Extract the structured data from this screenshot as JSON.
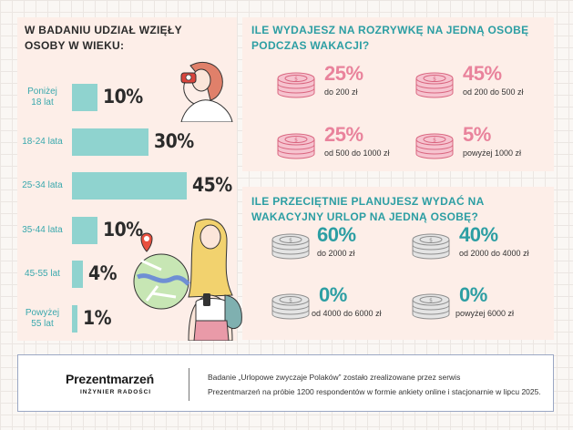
{
  "age_panel": {
    "title": "W BADANIU UDZIAŁ WZIĘŁY OSOBY W WIEKU:"
  },
  "spend_panel": {
    "title": "ILE WYDAJESZ NA ROZRYWKĘ NA JEDNĄ OSOBĘ PODCZAS WAKACJI?",
    "items": [
      {
        "pct": "25%",
        "range": "do 200 zł"
      },
      {
        "pct": "45%",
        "range": "od 200 do 500 zł"
      },
      {
        "pct": "25%",
        "range": "od 500 do 1000 zł"
      },
      {
        "pct": "5%",
        "range": "powyżej 1000 zł"
      }
    ]
  },
  "plan_panel": {
    "title": "ILE PRZECIĘTNIE PLANUJESZ WYDAĆ NA WAKACYJNY URLOP NA JEDNĄ OSOBĘ?",
    "items": [
      {
        "pct": "60%",
        "range": "do 2000 zł"
      },
      {
        "pct": "40%",
        "range": "od 2000 do 4000 zł"
      },
      {
        "pct": "0%",
        "range": "od 4000 do 6000 zł"
      },
      {
        "pct": "0%",
        "range": "powyżej 6000 zł"
      }
    ]
  },
  "chart_data": [
    {
      "type": "bar",
      "title": "W BADANIU UDZIAŁ WZIĘŁY OSOBY W WIEKU:",
      "categories": [
        "Poniżej 18 lat",
        "18-24 lata",
        "25-34 lata",
        "35-44 lata",
        "45-55 lat",
        "Powyżej 55 lat"
      ],
      "values": [
        10,
        30,
        45,
        10,
        4,
        1
      ],
      "value_labels": [
        "10%",
        "30%",
        "45%",
        "10%",
        "4%",
        "1%"
      ],
      "xlim": [
        0,
        45
      ]
    },
    {
      "type": "table",
      "title": "ILE WYDAJESZ NA ROZRYWKĘ NA JEDNĄ OSOBĘ PODCZAS WAKACJI?",
      "categories": [
        "do 200 zł",
        "od 200 do 500 zł",
        "od 500 do 1000 zł",
        "powyżej 1000 zł"
      ],
      "values": [
        25,
        45,
        25,
        5
      ]
    },
    {
      "type": "table",
      "title": "ILE PRZECIĘTNIE PLANUJESZ WYDAĆ NA WAKACYJNY URLOP NA JEDNĄ OSOBĘ?",
      "categories": [
        "do 2000 zł",
        "od 2000 do 4000 zł",
        "od 4000 do 6000 zł",
        "powyżej 6000 zł"
      ],
      "values": [
        60,
        40,
        0,
        0
      ]
    }
  ],
  "colors": {
    "bar": "#8fd3cf",
    "teal_text": "#2c9ea3",
    "pink_text": "#e9839c",
    "panel": "#fdeee8",
    "coin_pink": "#f6c3cf",
    "coin_gray": "#e4e4e4"
  },
  "footer": {
    "logo_name": "Prezentmarzeń",
    "logo_tagline": "INŻYNIER RADOŚCI",
    "line1": "Badanie „Urlopowe zwyczaje Polaków” zostało zrealizowane przez serwis",
    "line2": "Prezentmarzeń na próbie 1200 respondentów w formie ankiety online i stacjonarnie w lipcu 2025."
  }
}
